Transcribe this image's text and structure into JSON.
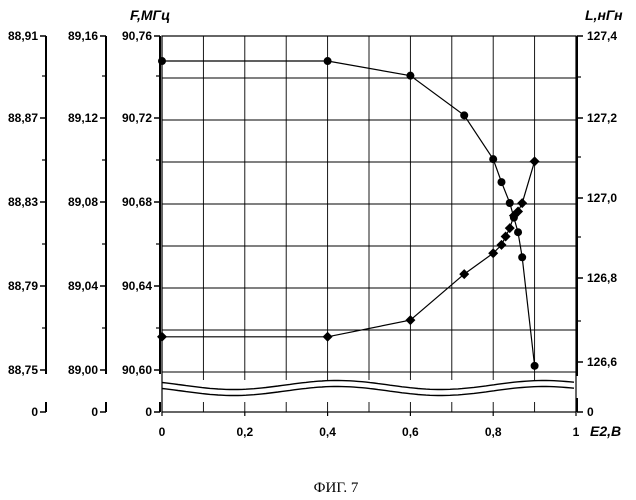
{
  "chart_data": {
    "type": "line",
    "x_axis": {
      "label": "E2,B",
      "ticks": [
        "0",
        "0,2",
        "0,4",
        "0,6",
        "0,8",
        "1"
      ],
      "range": [
        0,
        1
      ]
    },
    "left_axes": [
      {
        "ticks": [
          "88,75",
          "88,79",
          "88,83",
          "88,87",
          "88,91"
        ],
        "zero": "0",
        "range": [
          88.75,
          88.91
        ]
      },
      {
        "ticks": [
          "89,00",
          "89,04",
          "89,08",
          "89,12",
          "89,16"
        ],
        "zero": "0",
        "range": [
          89.0,
          89.16
        ]
      },
      {
        "label": "F,МГц",
        "ticks": [
          "90,60",
          "90,64",
          "90,68",
          "90,72",
          "90,76"
        ],
        "zero": "0",
        "range": [
          90.6,
          90.76
        ]
      }
    ],
    "right_axis": {
      "label": "L,нГн",
      "ticks": [
        "126,6",
        "126,8",
        "127,0",
        "127,2",
        "127,4"
      ],
      "zero": "0",
      "range": [
        126.5,
        127.4
      ]
    },
    "series": [
      {
        "marker": "circle",
        "axis": "F",
        "x": [
          0,
          0.4,
          0.6,
          0.73,
          0.8,
          0.82,
          0.84,
          0.85,
          0.86,
          0.87,
          0.9
        ],
        "y": [
          90.748,
          90.748,
          90.741,
          90.722,
          90.701,
          90.69,
          90.68,
          90.673,
          90.666,
          90.654,
          90.602
        ]
      },
      {
        "marker": "diamond",
        "axis": "L",
        "x": [
          0,
          0.4,
          0.6,
          0.73,
          0.8,
          0.82,
          0.83,
          0.84,
          0.85,
          0.86,
          0.87,
          0.9
        ],
        "y": [
          126.68,
          126.68,
          126.72,
          126.83,
          126.88,
          126.9,
          126.92,
          126.94,
          126.97,
          126.98,
          127.0,
          127.1
        ]
      }
    ]
  },
  "caption": "ФИГ. 7"
}
